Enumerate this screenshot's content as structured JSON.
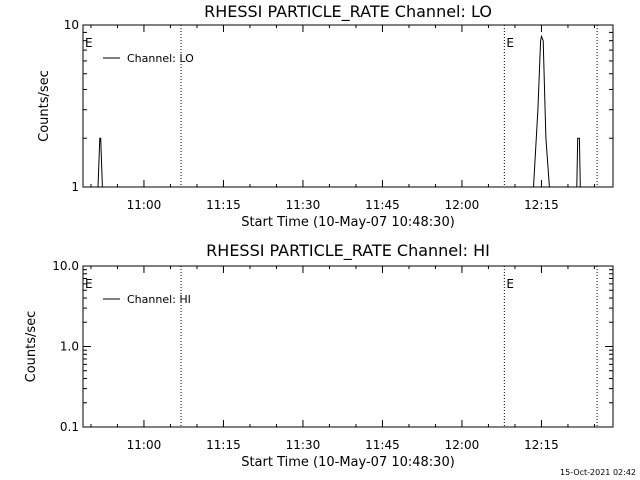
{
  "chart_data": [
    {
      "type": "line",
      "title": "RHESSI PARTICLE_RATE Channel: LO",
      "xlabel": "Start Time (10-May-07 10:48:30)",
      "ylabel": "Counts/sec",
      "y_scale": "log",
      "ylim": [
        1,
        10
      ],
      "yticks": [
        "1",
        "10"
      ],
      "xlim": [
        "10:48:30",
        "12:28:30"
      ],
      "xticks": [
        "11:00",
        "11:15",
        "11:30",
        "11:45",
        "12:00",
        "12:15"
      ],
      "legend": "top-left",
      "series": [
        {
          "name": "Channel: LO",
          "x": [
            "10:48:30",
            "10:51:00",
            "10:51:20",
            "10:51:40",
            "10:51:50",
            "10:52:10",
            "10:52:40",
            "12:13:30",
            "12:14:20",
            "12:14:50",
            "12:15:00",
            "12:15:20",
            "12:15:30",
            "12:15:50",
            "12:16:30",
            "12:21:40",
            "12:21:50",
            "12:22:10",
            "12:22:20",
            "12:28:30"
          ],
          "y": [
            1,
            1,
            1,
            2,
            2,
            1,
            1,
            1,
            3,
            8,
            8.5,
            8,
            5,
            2,
            1,
            1,
            2,
            2,
            1,
            1
          ]
        }
      ],
      "markers": [
        {
          "label": "E",
          "time": "10:48:30"
        },
        {
          "label": "",
          "time": "11:07:00"
        },
        {
          "label": "E",
          "time": "12:08:00"
        },
        {
          "label": "",
          "time": "12:25:30"
        }
      ]
    },
    {
      "type": "line",
      "title": "RHESSI PARTICLE_RATE Channel: HI",
      "xlabel": "Start Time (10-May-07 10:48:30)",
      "ylabel": "Counts/sec",
      "y_scale": "log",
      "ylim": [
        0.1,
        10
      ],
      "yticks": [
        "0.1",
        "1.0",
        "10.0"
      ],
      "xlim": [
        "10:48:30",
        "12:28:30"
      ],
      "xticks": [
        "11:00",
        "11:15",
        "11:30",
        "11:45",
        "12:00",
        "12:15"
      ],
      "legend": "top-left",
      "series": [
        {
          "name": "Channel: HI",
          "x": [],
          "y": []
        }
      ],
      "markers": [
        {
          "label": "E",
          "time": "10:48:30"
        },
        {
          "label": "",
          "time": "11:07:00"
        },
        {
          "label": "E",
          "time": "12:08:00"
        },
        {
          "label": "",
          "time": "12:25:30"
        }
      ]
    }
  ],
  "footer": {
    "timestamp": "15-Oct-2021 02:42"
  }
}
